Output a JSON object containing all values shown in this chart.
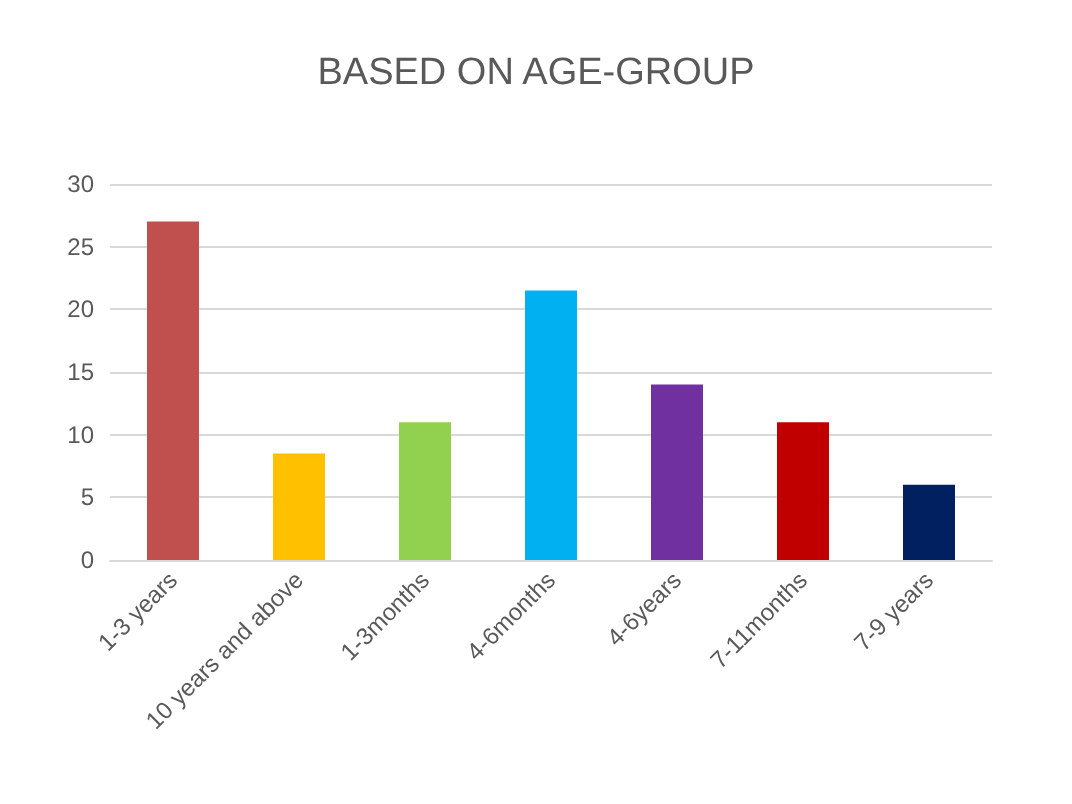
{
  "chart_data": {
    "type": "bar",
    "title": "BASED ON AGE-GROUP",
    "categories": [
      "1-3 years",
      "10 years and above",
      "1-3months",
      "4-6months",
      "4-6years",
      "7-11months",
      "7-9 years"
    ],
    "values": [
      27,
      8.5,
      11,
      21.5,
      14,
      11,
      6
    ],
    "colors": [
      "#c0504d",
      "#ffc000",
      "#92d050",
      "#00b0f0",
      "#7030a0",
      "#c00000",
      "#002060"
    ],
    "ylim": [
      0,
      30
    ],
    "yticks": [
      0,
      5,
      10,
      15,
      20,
      25,
      30
    ],
    "grid": "y"
  }
}
